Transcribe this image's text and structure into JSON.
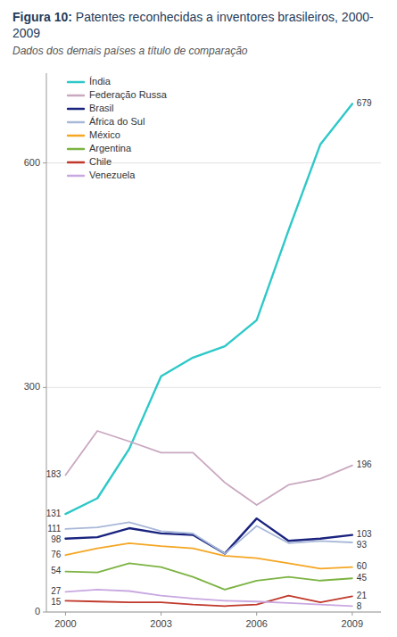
{
  "chart_data": {
    "type": "line",
    "title": "Figura 10: Patentes reconhecidas a inventores brasileiros, 2000-2009",
    "subtitle": "Dados dos demais países a título de comparação",
    "x": [
      2000,
      2001,
      2002,
      2003,
      2004,
      2005,
      2006,
      2007,
      2008,
      2009
    ],
    "series": [
      {
        "name": "Índia",
        "color": "#2ec8c8",
        "values": [
          131,
          152,
          218,
          315,
          340,
          355,
          390,
          510,
          625,
          679
        ],
        "value_labels": [
          "131",
          null,
          null,
          null,
          null,
          null,
          null,
          null,
          null,
          "679"
        ]
      },
      {
        "name": "Federação Russa",
        "color": "#c9a8c0",
        "values": [
          183,
          242,
          228,
          213,
          213,
          173,
          143,
          170,
          178,
          196
        ],
        "value_labels": [
          "183",
          null,
          null,
          null,
          null,
          null,
          null,
          null,
          null,
          "196"
        ]
      },
      {
        "name": "Brasil",
        "color": "#1a237e",
        "values": [
          98,
          100,
          112,
          105,
          103,
          78,
          125,
          95,
          98,
          103
        ],
        "value_labels": [
          "98",
          null,
          null,
          null,
          null,
          null,
          null,
          null,
          null,
          "103"
        ]
      },
      {
        "name": "África do Sul",
        "color": "#a8b8d8",
        "values": [
          111,
          113,
          120,
          108,
          105,
          78,
          115,
          92,
          95,
          93
        ],
        "value_labels": [
          "111",
          null,
          null,
          null,
          null,
          null,
          null,
          null,
          null,
          "93"
        ]
      },
      {
        "name": "México",
        "color": "#f5a623",
        "values": [
          76,
          85,
          92,
          88,
          85,
          75,
          72,
          65,
          58,
          60
        ],
        "value_labels": [
          "76",
          null,
          null,
          null,
          null,
          null,
          null,
          null,
          null,
          "60"
        ]
      },
      {
        "name": "Argentina",
        "color": "#7cb342",
        "values": [
          54,
          53,
          65,
          60,
          47,
          30,
          42,
          47,
          42,
          45
        ],
        "value_labels": [
          "54",
          null,
          null,
          null,
          null,
          null,
          null,
          null,
          null,
          "45"
        ]
      },
      {
        "name": "Chile",
        "color": "#c0392b",
        "values": [
          15,
          14,
          13,
          13,
          10,
          8,
          10,
          22,
          13,
          21
        ],
        "value_labels": [
          "15",
          null,
          null,
          null,
          null,
          null,
          null,
          null,
          null,
          "21"
        ]
      },
      {
        "name": "Venezuela",
        "color": "#c8a8e0",
        "values": [
          27,
          30,
          28,
          22,
          18,
          15,
          14,
          12,
          10,
          8
        ],
        "value_labels": [
          "27",
          null,
          null,
          null,
          null,
          null,
          null,
          null,
          null,
          "8"
        ]
      }
    ],
    "xlim": [
      1999.4,
      2009.9
    ],
    "xticks": [
      2000,
      2003,
      2006,
      2009
    ],
    "ylim": [
      0,
      720
    ],
    "yticks": [
      0,
      300,
      600
    ],
    "grid": true,
    "legend": "upper left",
    "data_labels": true
  }
}
